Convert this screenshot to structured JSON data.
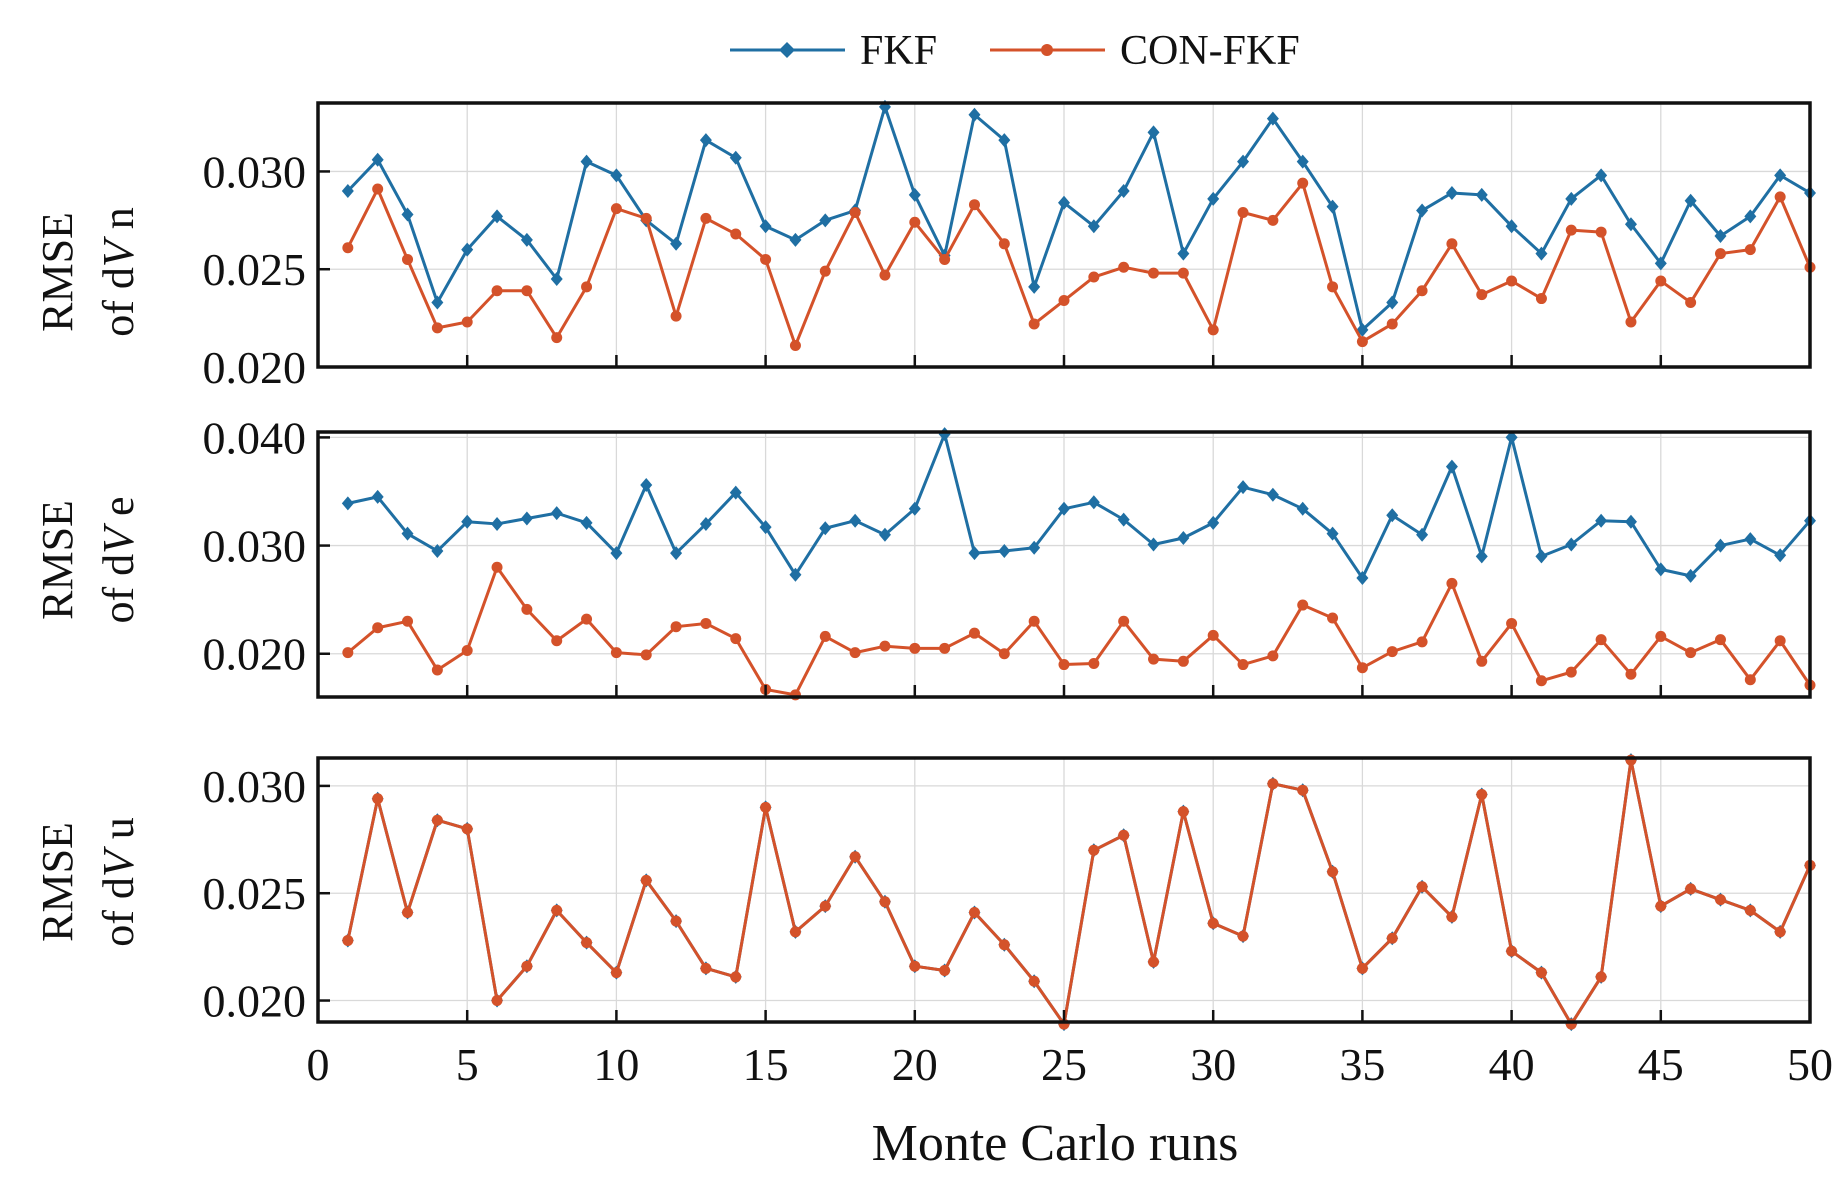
{
  "colors": {
    "fkf": "#1f6fa3",
    "con_fkf": "#d4522a"
  },
  "legend": {
    "fkf": "FKF",
    "con_fkf": "CON-FKF"
  },
  "xlabel": "Monte Carlo runs",
  "chart_data": [
    {
      "type": "line",
      "ylabel_line1": "RMSE",
      "ylabel_line2_prefix": "of d",
      "ylabel_line2_italic": "V",
      "ylabel_line2_suffix": " n",
      "ylim": [
        0.02,
        0.0335
      ],
      "yticks": [
        0.02,
        0.025,
        0.03
      ],
      "ytick_labels": [
        "0.020",
        "0.025",
        "0.030"
      ],
      "xlim": [
        0,
        50
      ],
      "x": [
        1,
        2,
        3,
        4,
        5,
        6,
        7,
        8,
        9,
        10,
        11,
        12,
        13,
        14,
        15,
        16,
        17,
        18,
        19,
        20,
        21,
        22,
        23,
        24,
        25,
        26,
        27,
        28,
        29,
        30,
        31,
        32,
        33,
        34,
        35,
        36,
        37,
        38,
        39,
        40,
        41,
        42,
        43,
        44,
        45,
        46,
        47,
        48,
        49,
        50
      ],
      "series": [
        {
          "name": "FKF",
          "values": [
            0.029,
            0.0306,
            0.0278,
            0.0233,
            0.026,
            0.0277,
            0.0265,
            0.0245,
            0.0305,
            0.0298,
            0.0275,
            0.0263,
            0.0316,
            0.0307,
            0.0272,
            0.0265,
            0.0275,
            0.028,
            0.0333,
            0.0288,
            0.0257,
            0.0329,
            0.0316,
            0.0241,
            0.0284,
            0.0272,
            0.029,
            0.032,
            0.0258,
            0.0286,
            0.0305,
            0.0327,
            0.0305,
            0.0282,
            0.0219,
            0.0233,
            0.028,
            0.0289,
            0.0288,
            0.0272,
            0.0258,
            0.0286,
            0.0298,
            0.0273,
            0.0253,
            0.0285,
            0.0267,
            0.0277,
            0.0298,
            0.0289
          ]
        },
        {
          "name": "CON-FKF",
          "values": [
            0.0261,
            0.0291,
            0.0255,
            0.022,
            0.0223,
            0.0239,
            0.0239,
            0.0215,
            0.0241,
            0.0281,
            0.0276,
            0.0226,
            0.0276,
            0.0268,
            0.0255,
            0.0211,
            0.0249,
            0.0279,
            0.0247,
            0.0274,
            0.0255,
            0.0283,
            0.0263,
            0.0222,
            0.0234,
            0.0246,
            0.0251,
            0.0248,
            0.0248,
            0.0219,
            0.0279,
            0.0275,
            0.0294,
            0.0241,
            0.0213,
            0.0222,
            0.0239,
            0.0263,
            0.0237,
            0.0244,
            0.0235,
            0.027,
            0.0269,
            0.0223,
            0.0244,
            0.0233,
            0.0258,
            0.026,
            0.0287,
            0.0251
          ]
        }
      ]
    },
    {
      "type": "line",
      "ylabel_line1": "RMSE",
      "ylabel_line2_prefix": "of d",
      "ylabel_line2_italic": "V",
      "ylabel_line2_suffix": " e",
      "ylim": [
        0.016,
        0.0405
      ],
      "yticks": [
        0.02,
        0.03,
        0.04
      ],
      "ytick_labels": [
        "0.020",
        "0.030",
        "0.040"
      ],
      "xlim": [
        0,
        50
      ],
      "x": [
        1,
        2,
        3,
        4,
        5,
        6,
        7,
        8,
        9,
        10,
        11,
        12,
        13,
        14,
        15,
        16,
        17,
        18,
        19,
        20,
        21,
        22,
        23,
        24,
        25,
        26,
        27,
        28,
        29,
        30,
        31,
        32,
        33,
        34,
        35,
        36,
        37,
        38,
        39,
        40,
        41,
        42,
        43,
        44,
        45,
        46,
        47,
        48,
        49,
        50
      ],
      "series": [
        {
          "name": "FKF",
          "values": [
            0.0339,
            0.0345,
            0.0311,
            0.0295,
            0.0322,
            0.032,
            0.0325,
            0.033,
            0.0321,
            0.0293,
            0.0356,
            0.0293,
            0.032,
            0.0349,
            0.0317,
            0.0273,
            0.0316,
            0.0323,
            0.031,
            0.0334,
            0.0403,
            0.0293,
            0.0295,
            0.0298,
            0.0334,
            0.034,
            0.0324,
            0.0301,
            0.0307,
            0.0321,
            0.0354,
            0.0347,
            0.0334,
            0.0311,
            0.027,
            0.0328,
            0.031,
            0.0373,
            0.029,
            0.04,
            0.029,
            0.0301,
            0.0323,
            0.0322,
            0.0278,
            0.0272,
            0.03,
            0.0306,
            0.0291,
            0.0323
          ]
        },
        {
          "name": "CON-FKF",
          "values": [
            0.0201,
            0.0224,
            0.023,
            0.0185,
            0.0203,
            0.028,
            0.0241,
            0.0212,
            0.0232,
            0.0201,
            0.0199,
            0.0225,
            0.0228,
            0.0214,
            0.0167,
            0.0162,
            0.0216,
            0.0201,
            0.0207,
            0.0205,
            0.0205,
            0.0219,
            0.02,
            0.023,
            0.019,
            0.0191,
            0.023,
            0.0195,
            0.0193,
            0.0217,
            0.019,
            0.0198,
            0.0245,
            0.0233,
            0.0187,
            0.0202,
            0.0211,
            0.0265,
            0.0193,
            0.0228,
            0.0175,
            0.0183,
            0.0213,
            0.0181,
            0.0216,
            0.0201,
            0.0213,
            0.0176,
            0.0212,
            0.0171
          ]
        }
      ]
    },
    {
      "type": "line",
      "ylabel_line1": "RMSE",
      "ylabel_line2_prefix": "of d",
      "ylabel_line2_italic": "V",
      "ylabel_line2_suffix": " u",
      "ylim": [
        0.019,
        0.0313
      ],
      "yticks": [
        0.02,
        0.025,
        0.03
      ],
      "ytick_labels": [
        "0.020",
        "0.025",
        "0.030"
      ],
      "xlim": [
        0,
        50
      ],
      "xticks": [
        0,
        5,
        10,
        15,
        20,
        25,
        30,
        35,
        40,
        45,
        50
      ],
      "xtick_labels": [
        "0",
        "5",
        "10",
        "15",
        "20",
        "25",
        "30",
        "35",
        "40",
        "45",
        "50"
      ],
      "x": [
        1,
        2,
        3,
        4,
        5,
        6,
        7,
        8,
        9,
        10,
        11,
        12,
        13,
        14,
        15,
        16,
        17,
        18,
        19,
        20,
        21,
        22,
        23,
        24,
        25,
        26,
        27,
        28,
        29,
        30,
        31,
        32,
        33,
        34,
        35,
        36,
        37,
        38,
        39,
        40,
        41,
        42,
        43,
        44,
        45,
        46,
        47,
        48,
        49,
        50
      ],
      "series": [
        {
          "name": "FKF",
          "values": [
            0.0228,
            0.0294,
            0.0241,
            0.0284,
            0.028,
            0.02,
            0.0216,
            0.0242,
            0.0227,
            0.0213,
            0.0256,
            0.0237,
            0.0215,
            0.0211,
            0.029,
            0.0232,
            0.0244,
            0.0267,
            0.0246,
            0.0216,
            0.0214,
            0.0241,
            0.0226,
            0.0209,
            0.0189,
            0.027,
            0.0277,
            0.0218,
            0.0288,
            0.0236,
            0.023,
            0.0301,
            0.0298,
            0.026,
            0.0215,
            0.0229,
            0.0253,
            0.0239,
            0.0296,
            0.0223,
            0.0213,
            0.0189,
            0.0211,
            0.0312,
            0.0244,
            0.0252,
            0.0247,
            0.0242,
            0.0232,
            0.0263
          ]
        },
        {
          "name": "CON-FKF",
          "values": [
            0.0228,
            0.0294,
            0.0241,
            0.0284,
            0.028,
            0.02,
            0.0216,
            0.0242,
            0.0227,
            0.0213,
            0.0256,
            0.0237,
            0.0215,
            0.0211,
            0.029,
            0.0232,
            0.0244,
            0.0267,
            0.0246,
            0.0216,
            0.0214,
            0.0241,
            0.0226,
            0.0209,
            0.0189,
            0.027,
            0.0277,
            0.0218,
            0.0288,
            0.0236,
            0.023,
            0.0301,
            0.0298,
            0.026,
            0.0215,
            0.0229,
            0.0253,
            0.0239,
            0.0296,
            0.0223,
            0.0213,
            0.0189,
            0.0211,
            0.0312,
            0.0244,
            0.0252,
            0.0247,
            0.0242,
            0.0232,
            0.0263
          ]
        }
      ]
    }
  ]
}
